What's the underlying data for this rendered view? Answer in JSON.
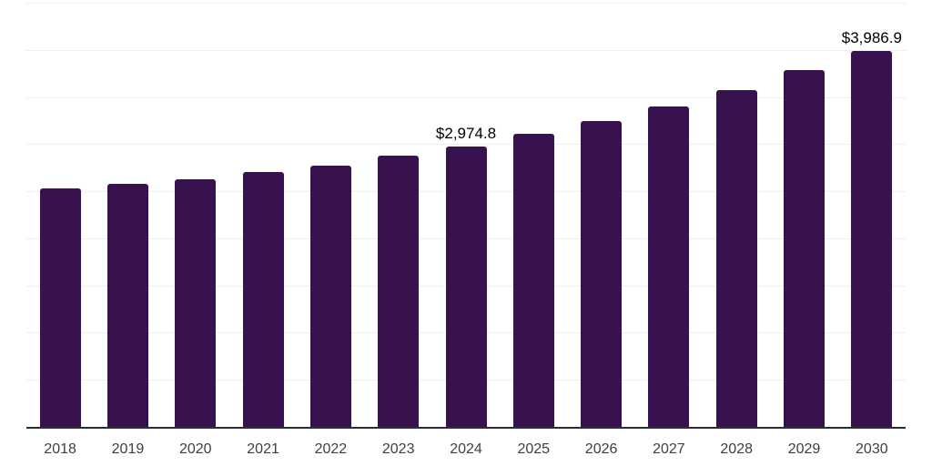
{
  "page": {
    "background": "#ffffff"
  },
  "chart_data": {
    "type": "bar",
    "title": "",
    "xlabel": "",
    "ylabel": "",
    "categories": [
      "2018",
      "2019",
      "2020",
      "2021",
      "2022",
      "2023",
      "2024",
      "2025",
      "2026",
      "2027",
      "2028",
      "2029",
      "2030"
    ],
    "values": [
      2530,
      2580,
      2630,
      2700,
      2775,
      2875,
      2974.8,
      3110,
      3245,
      3400,
      3575,
      3790,
      3986.9
    ],
    "bar_labels": [
      "",
      "",
      "",
      "",
      "",
      "",
      "$2,974.8",
      "",
      "",
      "",
      "",
      "",
      "$3,986.9"
    ],
    "ylim": [
      0,
      4500
    ],
    "gridline_step": 500,
    "grid": true,
    "legend": "none",
    "bar_color": "#37124f",
    "grid_color": "#efefef",
    "axis_color": "#2d2d35",
    "tick_label_color": "#3f3f3f",
    "data_label_color": "#000000"
  }
}
